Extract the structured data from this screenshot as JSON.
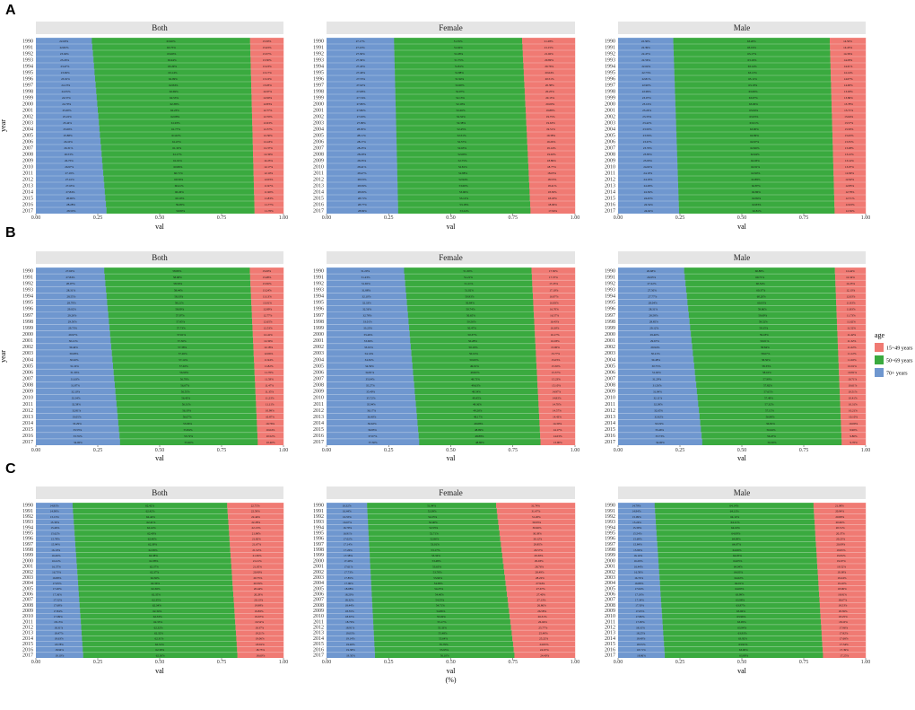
{
  "colors": {
    "y15_49": "#f07a73",
    "y50_69": "#3aaa3f",
    "y70p": "#6f97cf",
    "strip": "#e5e5e5"
  },
  "facets": [
    "Both",
    "Female",
    "Male"
  ],
  "years": [
    "1990",
    "1991",
    "1992",
    "1993",
    "1994",
    "1995",
    "1996",
    "1997",
    "1998",
    "1999",
    "2000",
    "2001",
    "2002",
    "2003",
    "2004",
    "2005",
    "2006",
    "2007",
    "2008",
    "2009",
    "2010",
    "2011",
    "2012",
    "2013",
    "2014",
    "2015",
    "2016",
    "2017"
  ],
  "xtick_labels": [
    "0.00",
    "0.25",
    "0.50",
    "0.75",
    "1.00"
  ],
  "xlabel": "val",
  "ylabel": "year",
  "bottom_label": "(%)",
  "legend": {
    "title": "age",
    "items": [
      "15~49 years",
      "50~69 years",
      "70+ years"
    ]
  },
  "chart_data": [
    {
      "type": "bar",
      "panel": "A",
      "facet": "Both",
      "series": [
        {
          "name": "70+ years",
          "start": 0.226,
          "end": 0.285
        },
        {
          "name": "50~69 years",
          "start": 0.639,
          "end": 0.598
        },
        {
          "name": "15~49 years",
          "start": 0.135,
          "end": 0.117
        }
      ]
    },
    {
      "type": "bar",
      "panel": "A",
      "facet": "Female",
      "series": [
        {
          "name": "70+ years",
          "start": 0.263,
          "end": 0.294
        },
        {
          "name": "50~69 years",
          "start": 0.499,
          "end": 0.543
        },
        {
          "name": "15~49 years",
          "start": 0.206,
          "end": 0.183
        }
      ]
    },
    {
      "type": "bar",
      "panel": "A",
      "facet": "Male",
      "series": [
        {
          "name": "70+ years",
          "start": 0.223,
          "end": 0.245
        },
        {
          "name": "50~69 years",
          "start": 0.632,
          "end": 0.625
        },
        {
          "name": "15~49 years",
          "start": 0.145,
          "end": 0.125
        }
      ]
    },
    {
      "type": "bar",
      "panel": "B",
      "facet": "Both",
      "series": [
        {
          "name": "70+ years",
          "start": 0.276,
          "end": 0.34
        },
        {
          "name": "50~69 years",
          "start": 0.588,
          "end": 0.556
        },
        {
          "name": "15~49 years",
          "start": 0.136,
          "end": 0.104
        }
      ]
    },
    {
      "type": "bar",
      "panel": "B",
      "facet": "Female",
      "series": [
        {
          "name": "70+ years",
          "start": 0.312,
          "end": 0.373
        },
        {
          "name": "50~69 years",
          "start": 0.513,
          "end": 0.488
        },
        {
          "name": "15~49 years",
          "start": 0.175,
          "end": 0.139
        }
      ]
    },
    {
      "type": "bar",
      "panel": "B",
      "facet": "Male",
      "series": [
        {
          "name": "70+ years",
          "start": 0.266,
          "end": 0.34
        },
        {
          "name": "50~69 years",
          "start": 0.607,
          "end": 0.563
        },
        {
          "name": "15~49 years",
          "start": 0.124,
          "end": 0.097
        }
      ]
    },
    {
      "type": "bar",
      "panel": "C",
      "facet": "Both",
      "series": [
        {
          "name": "70+ years",
          "start": 0.148,
          "end": 0.191
        },
        {
          "name": "50~69 years",
          "start": 0.623,
          "end": 0.623
        },
        {
          "name": "15~49 years",
          "start": 0.227,
          "end": 0.186
        }
      ]
    },
    {
      "type": "bar",
      "panel": "C",
      "facet": "Female",
      "series": [
        {
          "name": "70+ years",
          "start": 0.164,
          "end": 0.195
        },
        {
          "name": "50~69 years",
          "start": 0.522,
          "end": 0.561
        },
        {
          "name": "15~49 years",
          "start": 0.319,
          "end": 0.244
        }
      ]
    },
    {
      "type": "bar",
      "panel": "C",
      "facet": "Male",
      "series": [
        {
          "name": "70+ years",
          "start": 0.148,
          "end": 0.188
        },
        {
          "name": "50~69 years",
          "start": 0.642,
          "end": 0.637
        },
        {
          "name": "15~49 years",
          "start": 0.211,
          "end": 0.172
        }
      ]
    }
  ]
}
